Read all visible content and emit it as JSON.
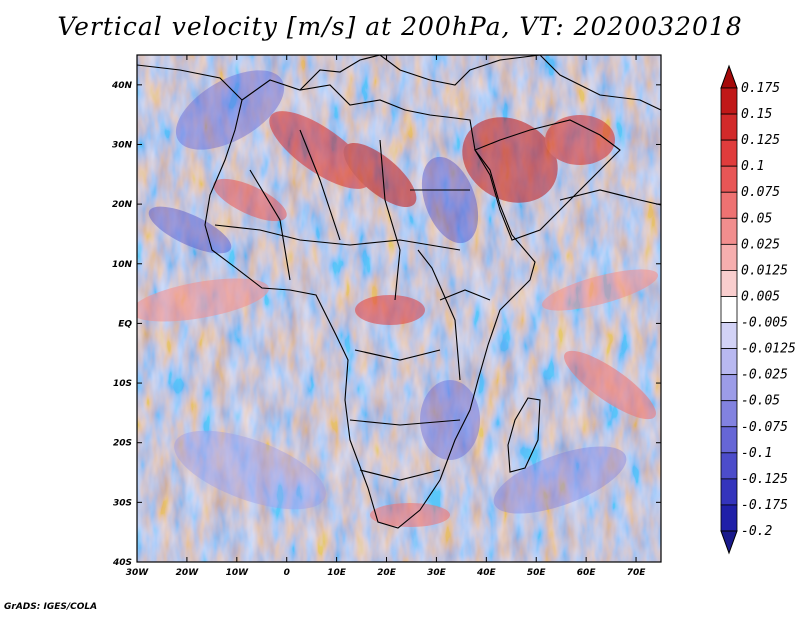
{
  "title": "Vertical velocity [m/s] at 200hPa, VT: 2020032018",
  "footer": "GrADS: IGES/COLA",
  "map": {
    "lon_range": [
      -30,
      75
    ],
    "lat_range": [
      -40,
      45
    ],
    "lon_ticks": [
      "30W",
      "20W",
      "10W",
      "0",
      "10E",
      "20E",
      "30E",
      "40E",
      "50E",
      "60E",
      "70E"
    ],
    "lat_ticks": [
      "40N",
      "30N",
      "20N",
      "10N",
      "EQ",
      "10S",
      "20S",
      "30S",
      "40S"
    ]
  },
  "colorbar": {
    "labels": [
      "0.175",
      "0.15",
      "0.125",
      "0.1",
      "0.075",
      "0.05",
      "0.025",
      "0.0125",
      "0.005",
      "-0.005",
      "-0.0125",
      "-0.025",
      "-0.05",
      "-0.075",
      "-0.1",
      "-0.125",
      "-0.175",
      "-0.2"
    ],
    "colors": [
      "#a50a0a",
      "#c01818",
      "#d22a2a",
      "#e03c3c",
      "#e85656",
      "#ee7272",
      "#f28e8e",
      "#f6aeae",
      "#f9cece",
      "#ffffff",
      "#d2d2f6",
      "#b8b8f0",
      "#9c9ce8",
      "#8282e0",
      "#6666d6",
      "#4c4cca",
      "#3434bc",
      "#2020a8",
      "#1a1a8c"
    ]
  }
}
